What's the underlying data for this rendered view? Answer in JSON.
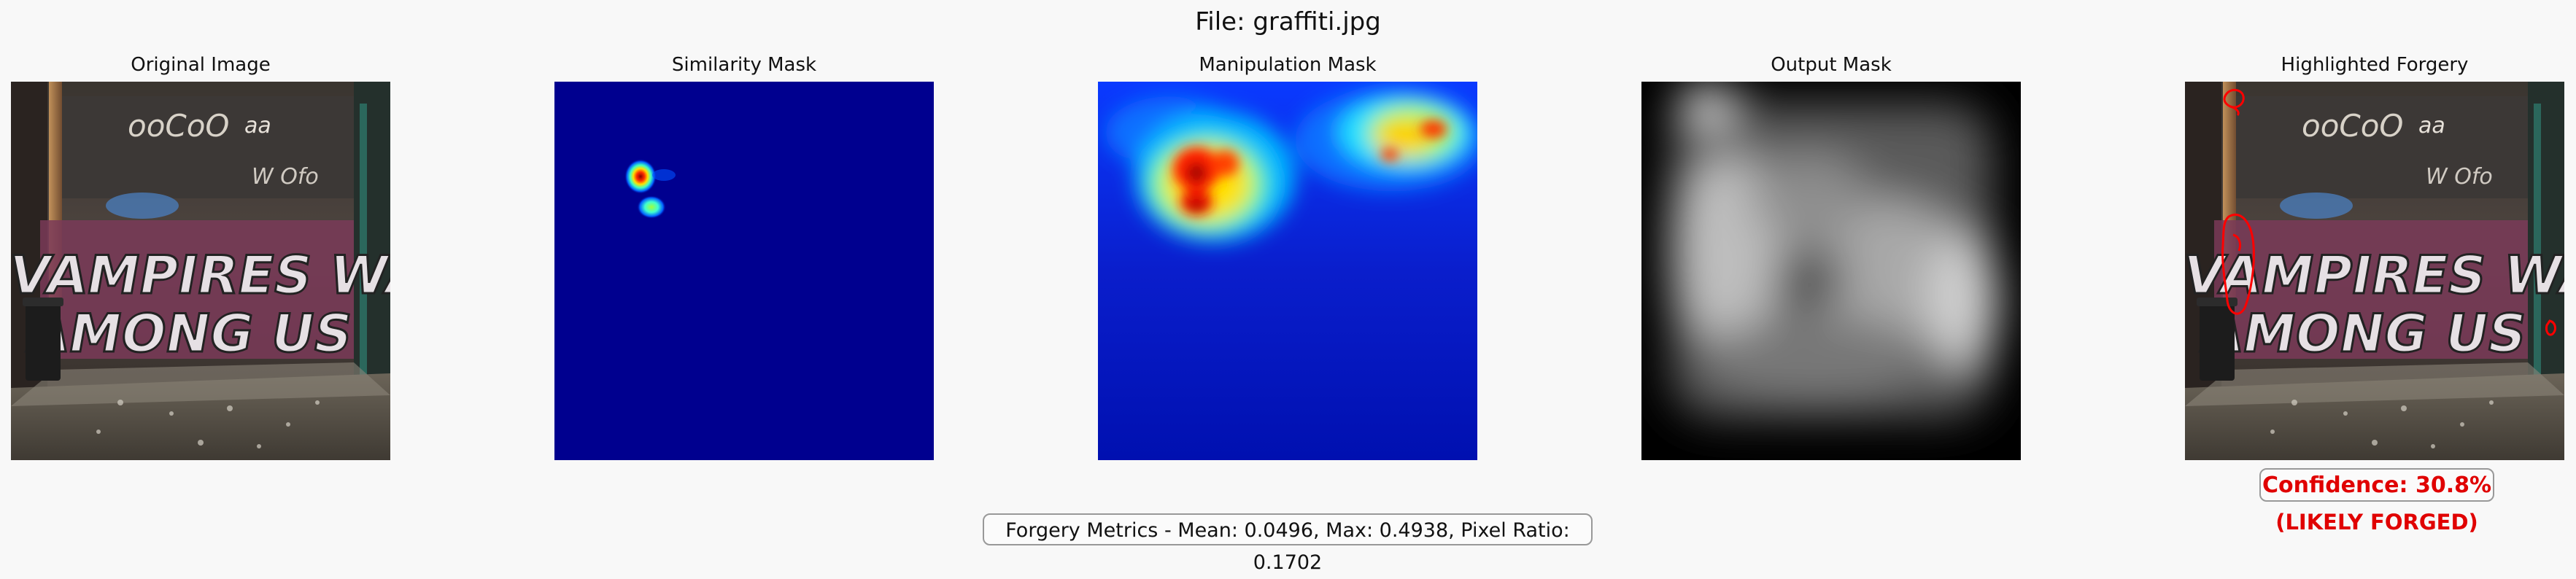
{
  "suptitle": "File: graffiti.jpg",
  "panels": [
    {
      "title": "Original Image"
    },
    {
      "title": "Similarity Mask"
    },
    {
      "title": "Manipulation Mask"
    },
    {
      "title": "Output Mask"
    },
    {
      "title": "Highlighted Forgery"
    }
  ],
  "image_text": {
    "line1": "VAMPIRES WALK",
    "line2": "AMONG US"
  },
  "metrics": {
    "text": "Forgery Metrics - Mean: 0.0496, Max: 0.4938, Pixel Ratio: 0.1702",
    "mean": 0.0496,
    "max": 0.4938,
    "pixel_ratio": 0.1702
  },
  "confidence": {
    "text": "Confidence: 30.8%",
    "value": 30.8,
    "verdict": "(LIKELY FORGED)"
  },
  "colors": {
    "confidence_text": "#e00000",
    "similarity_background": "#00008f",
    "highlight_contour": "#ff0000"
  }
}
